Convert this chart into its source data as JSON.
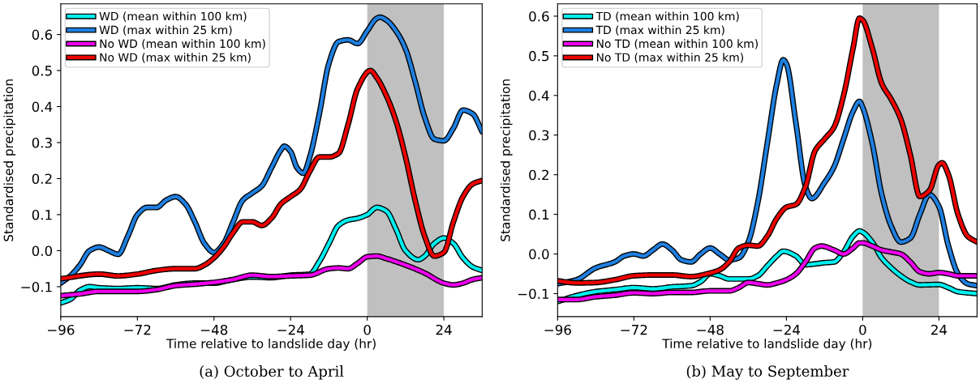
{
  "chart_data": [
    {
      "type": "line",
      "xlabel": "Time relative to landslide day (hr)",
      "ylabel": "Standardised precipitation",
      "annotations": [
        "(a) October to April"
      ],
      "xlim": [
        -96,
        36
      ],
      "ylim": [
        -0.183,
        0.685
      ],
      "xticks": [
        {
          "value": -96,
          "label": "−96"
        },
        {
          "value": -72,
          "label": "−72"
        },
        {
          "value": -48,
          "label": "−48"
        },
        {
          "value": -24,
          "label": "−24"
        },
        {
          "value": 0,
          "label": "0"
        },
        {
          "value": 24,
          "label": "24"
        }
      ],
      "yticks": [
        {
          "value": -0.1,
          "label": "−0.1"
        },
        {
          "value": 0.0,
          "label": "0.0"
        },
        {
          "value": 0.1,
          "label": "0.1"
        },
        {
          "value": 0.2,
          "label": "0.2"
        },
        {
          "value": 0.3,
          "label": "0.3"
        },
        {
          "value": 0.4,
          "label": "0.4"
        },
        {
          "value": 0.5,
          "label": "0.5"
        },
        {
          "value": 0.6,
          "label": "0.6"
        }
      ],
      "bands": [
        {
          "axis": "x",
          "from": 0,
          "to": 24,
          "color": "#c0c0c0"
        }
      ],
      "legend": "top left",
      "grid": false,
      "marker": "none",
      "line_style": "solid",
      "series": [
        {
          "name": "WD (mean within 100 km)",
          "color": "#00f0f0",
          "x": [
            -96,
            -93,
            -90,
            -87,
            -84,
            -78,
            -72,
            -66,
            -60,
            -54,
            -48,
            -42,
            -36,
            -30,
            -24,
            -18,
            -15,
            -12,
            -9,
            -6,
            -3,
            0,
            3,
            6,
            9,
            12,
            16,
            18,
            21,
            24,
            27,
            30,
            33,
            36
          ],
          "values": [
            -0.145,
            -0.135,
            -0.11,
            -0.1,
            -0.103,
            -0.105,
            -0.103,
            -0.105,
            -0.095,
            -0.09,
            -0.09,
            -0.08,
            -0.073,
            -0.075,
            -0.068,
            -0.065,
            -0.03,
            0.02,
            0.07,
            0.085,
            0.09,
            0.1,
            0.12,
            0.11,
            0.06,
            0.0,
            -0.025,
            -0.015,
            0.02,
            0.035,
            0.02,
            -0.02,
            -0.045,
            -0.055
          ]
        },
        {
          "name": "WD (max within 25 km)",
          "color": "#1f7fe0",
          "x": [
            -96,
            -93,
            -90,
            -87,
            -84,
            -81,
            -78,
            -75,
            -72,
            -69,
            -66,
            -63,
            -60,
            -57,
            -54,
            -51,
            -48,
            -45,
            -42,
            -39,
            -36,
            -33,
            -30,
            -27,
            -26,
            -24,
            -22,
            -20,
            -18,
            -15,
            -12,
            -9,
            -6,
            -3,
            0,
            3,
            4,
            6,
            9,
            12,
            15,
            18,
            21,
            24,
            27,
            30,
            33,
            36
          ],
          "values": [
            -0.09,
            -0.07,
            -0.04,
            0.0,
            0.01,
            0.0,
            -0.01,
            0.04,
            0.1,
            0.12,
            0.12,
            0.14,
            0.15,
            0.13,
            0.08,
            0.02,
            -0.005,
            0.02,
            0.08,
            0.14,
            0.16,
            0.18,
            0.23,
            0.28,
            0.29,
            0.275,
            0.23,
            0.215,
            0.26,
            0.38,
            0.52,
            0.58,
            0.585,
            0.575,
            0.61,
            0.645,
            0.648,
            0.64,
            0.61,
            0.56,
            0.47,
            0.37,
            0.31,
            0.305,
            0.34,
            0.39,
            0.38,
            0.33
          ]
        },
        {
          "name": "No WD (mean within 100 km)",
          "color": "#ee00ee",
          "x": [
            -96,
            -90,
            -84,
            -72,
            -66,
            -60,
            -54,
            -48,
            -42,
            -36,
            -30,
            -24,
            -18,
            -12,
            -9,
            -6,
            -3,
            0,
            3,
            6,
            12,
            18,
            24,
            27,
            30,
            33,
            36
          ],
          "values": [
            -0.125,
            -0.12,
            -0.113,
            -0.113,
            -0.108,
            -0.097,
            -0.093,
            -0.088,
            -0.08,
            -0.068,
            -0.072,
            -0.07,
            -0.068,
            -0.05,
            -0.048,
            -0.05,
            -0.035,
            -0.017,
            -0.015,
            -0.022,
            -0.04,
            -0.062,
            -0.09,
            -0.095,
            -0.09,
            -0.08,
            -0.075
          ]
        },
        {
          "name": "No WD (max within 25 km)",
          "color": "#ee0000",
          "x": [
            -96,
            -84,
            -78,
            -72,
            -66,
            -60,
            -54,
            -51,
            -48,
            -45,
            -42,
            -39,
            -36,
            -33,
            -30,
            -27,
            -24,
            -21,
            -18,
            -15,
            -12,
            -9,
            -6,
            -3,
            1,
            3,
            6,
            9,
            12,
            15,
            18,
            21,
            24,
            27,
            30,
            33,
            36
          ],
          "values": [
            -0.078,
            -0.065,
            -0.07,
            -0.065,
            -0.055,
            -0.05,
            -0.05,
            -0.04,
            -0.02,
            0.01,
            0.05,
            0.08,
            0.08,
            0.07,
            0.09,
            0.13,
            0.15,
            0.17,
            0.22,
            0.26,
            0.26,
            0.27,
            0.35,
            0.45,
            0.5,
            0.48,
            0.43,
            0.36,
            0.26,
            0.14,
            0.04,
            -0.015,
            -0.005,
            0.08,
            0.15,
            0.185,
            0.195
          ]
        }
      ]
    },
    {
      "type": "line",
      "xlabel": "Time relative to landslide day (hr)",
      "ylabel": "Standardised precipitation",
      "annotations": [
        "(b) May to September"
      ],
      "xlim": [
        -96,
        36
      ],
      "ylim": [
        -0.158,
        0.631
      ],
      "xticks": [
        {
          "value": -96,
          "label": "−96"
        },
        {
          "value": -72,
          "label": "−72"
        },
        {
          "value": -48,
          "label": "−48"
        },
        {
          "value": -24,
          "label": "−24"
        },
        {
          "value": 0,
          "label": "0"
        },
        {
          "value": 24,
          "label": "24"
        }
      ],
      "yticks": [
        {
          "value": -0.1,
          "label": "−0.1"
        },
        {
          "value": 0.0,
          "label": "0.0"
        },
        {
          "value": 0.1,
          "label": "0.1"
        },
        {
          "value": 0.2,
          "label": "0.2"
        },
        {
          "value": 0.3,
          "label": "0.3"
        },
        {
          "value": 0.4,
          "label": "0.4"
        },
        {
          "value": 0.5,
          "label": "0.5"
        },
        {
          "value": 0.6,
          "label": "0.6"
        }
      ],
      "bands": [
        {
          "axis": "x",
          "from": 0,
          "to": 24,
          "color": "#c0c0c0"
        }
      ],
      "legend": "top left",
      "grid": false,
      "marker": "none",
      "line_style": "solid",
      "series": [
        {
          "name": "TD (mean within 100 km)",
          "color": "#00f0f0",
          "x": [
            -96,
            -90,
            -84,
            -78,
            -72,
            -66,
            -60,
            -54,
            -51,
            -48,
            -45,
            -42,
            -36,
            -33,
            -30,
            -27,
            -25,
            -21,
            -18,
            -12,
            -9,
            -6,
            -3,
            -1,
            0,
            3,
            6,
            9,
            12,
            15,
            18,
            24,
            27,
            30,
            36
          ],
          "values": [
            -0.12,
            -0.105,
            -0.095,
            -0.09,
            -0.085,
            -0.088,
            -0.083,
            -0.08,
            -0.07,
            -0.05,
            -0.055,
            -0.063,
            -0.063,
            -0.055,
            -0.03,
            -0.005,
            0.007,
            -0.005,
            -0.027,
            -0.022,
            -0.02,
            0.005,
            0.045,
            0.058,
            0.055,
            0.03,
            -0.01,
            -0.035,
            -0.055,
            -0.07,
            -0.078,
            -0.077,
            -0.085,
            -0.095,
            -0.1
          ]
        },
        {
          "name": "TD (max within 25 km)",
          "color": "#1f7fe0",
          "x": [
            -96,
            -90,
            -84,
            -78,
            -75,
            -72,
            -69,
            -66,
            -63,
            -60,
            -57,
            -54,
            -51,
            -48,
            -45,
            -42,
            -39,
            -36,
            -33,
            -30,
            -27,
            -25,
            -24,
            -21,
            -18,
            -16,
            -12,
            -9,
            -6,
            -3,
            -1,
            0,
            3,
            6,
            9,
            12,
            15,
            18,
            21,
            24,
            27,
            30,
            33,
            36
          ],
          "values": [
            -0.075,
            -0.065,
            -0.035,
            -0.02,
            -0.005,
            0.0,
            -0.005,
            0.01,
            0.025,
            0.01,
            -0.015,
            -0.02,
            0.0,
            0.015,
            0.0,
            -0.015,
            -0.01,
            0.03,
            0.13,
            0.28,
            0.43,
            0.49,
            0.48,
            0.33,
            0.17,
            0.14,
            0.18,
            0.22,
            0.29,
            0.36,
            0.385,
            0.37,
            0.28,
            0.15,
            0.07,
            0.03,
            0.04,
            0.1,
            0.15,
            0.12,
            0.02,
            -0.05,
            -0.075,
            -0.08
          ]
        },
        {
          "name": "No TD (mean within 100 km)",
          "color": "#ee00ee",
          "x": [
            -96,
            -90,
            -84,
            -78,
            -72,
            -66,
            -60,
            -54,
            -48,
            -42,
            -39,
            -36,
            -33,
            -30,
            -27,
            -24,
            -21,
            -18,
            -15,
            -13,
            -9,
            -6,
            -3,
            -1,
            0,
            3,
            6,
            9,
            12,
            15,
            18,
            21,
            24,
            27,
            30,
            36
          ],
          "values": [
            -0.115,
            -0.115,
            -0.108,
            -0.104,
            -0.098,
            -0.1,
            -0.097,
            -0.097,
            -0.093,
            -0.093,
            -0.085,
            -0.072,
            -0.075,
            -0.078,
            -0.073,
            -0.065,
            -0.05,
            -0.02,
            0.015,
            0.02,
            0.01,
            0.0,
            0.015,
            0.028,
            0.028,
            0.02,
            0.01,
            0.005,
            0.0,
            -0.02,
            -0.045,
            -0.05,
            -0.047,
            -0.05,
            -0.055,
            -0.055
          ]
        },
        {
          "name": "No TD (max within 25 km)",
          "color": "#ee0000",
          "x": [
            -96,
            -90,
            -84,
            -78,
            -72,
            -66,
            -60,
            -54,
            -48,
            -45,
            -42,
            -39,
            -36,
            -33,
            -30,
            -27,
            -24,
            -21,
            -18,
            -15,
            -12,
            -9,
            -6,
            -3,
            -1,
            0,
            3,
            6,
            9,
            12,
            15,
            18,
            21,
            24,
            25,
            27,
            30,
            33,
            36
          ],
          "values": [
            -0.068,
            -0.073,
            -0.072,
            -0.065,
            -0.055,
            -0.053,
            -0.053,
            -0.057,
            -0.048,
            -0.04,
            -0.02,
            0.015,
            0.022,
            0.02,
            0.045,
            0.09,
            0.118,
            0.125,
            0.17,
            0.26,
            0.29,
            0.32,
            0.4,
            0.52,
            0.595,
            0.59,
            0.52,
            0.43,
            0.39,
            0.34,
            0.25,
            0.145,
            0.16,
            0.225,
            0.23,
            0.2,
            0.1,
            0.045,
            0.03
          ]
        }
      ]
    }
  ]
}
